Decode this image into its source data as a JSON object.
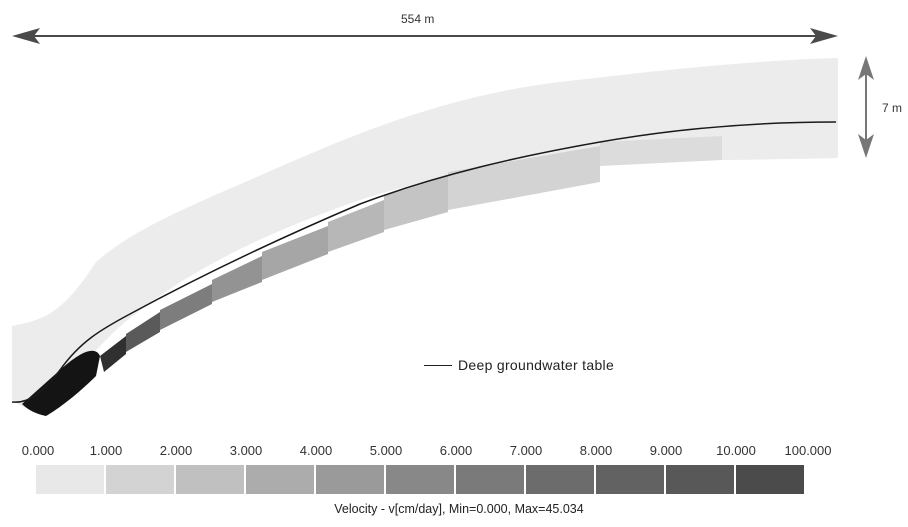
{
  "dimensions": {
    "width_label": "554 m",
    "height_label": "7 m"
  },
  "legend": {
    "line_label": "Deep groundwater table"
  },
  "colorbar": {
    "ticks": [
      "0.000",
      "1.000",
      "2.000",
      "3.000",
      "4.000",
      "5.000",
      "6.000",
      "7.000",
      "8.000",
      "9.000",
      "10.000",
      "100.000"
    ],
    "colors": [
      "#e8e8e8",
      "#d3d3d3",
      "#c0c0c0",
      "#acacac",
      "#9a9a9a",
      "#888888",
      "#7a7a7a",
      "#6c6c6c",
      "#626262",
      "#585858",
      "#4b4b4b"
    ],
    "caption": "Velocity  - v[cm/day], Min=0.000, Max=45.034"
  },
  "zone_colors": {
    "upper": "#ececec",
    "bands": [
      "#dcdcdc",
      "#d3d3d3",
      "#c4c4c4",
      "#b7b7b7",
      "#a6a6a6",
      "#939393",
      "#7d7d7d",
      "#5a5a5a",
      "#303030",
      "#141414"
    ]
  }
}
